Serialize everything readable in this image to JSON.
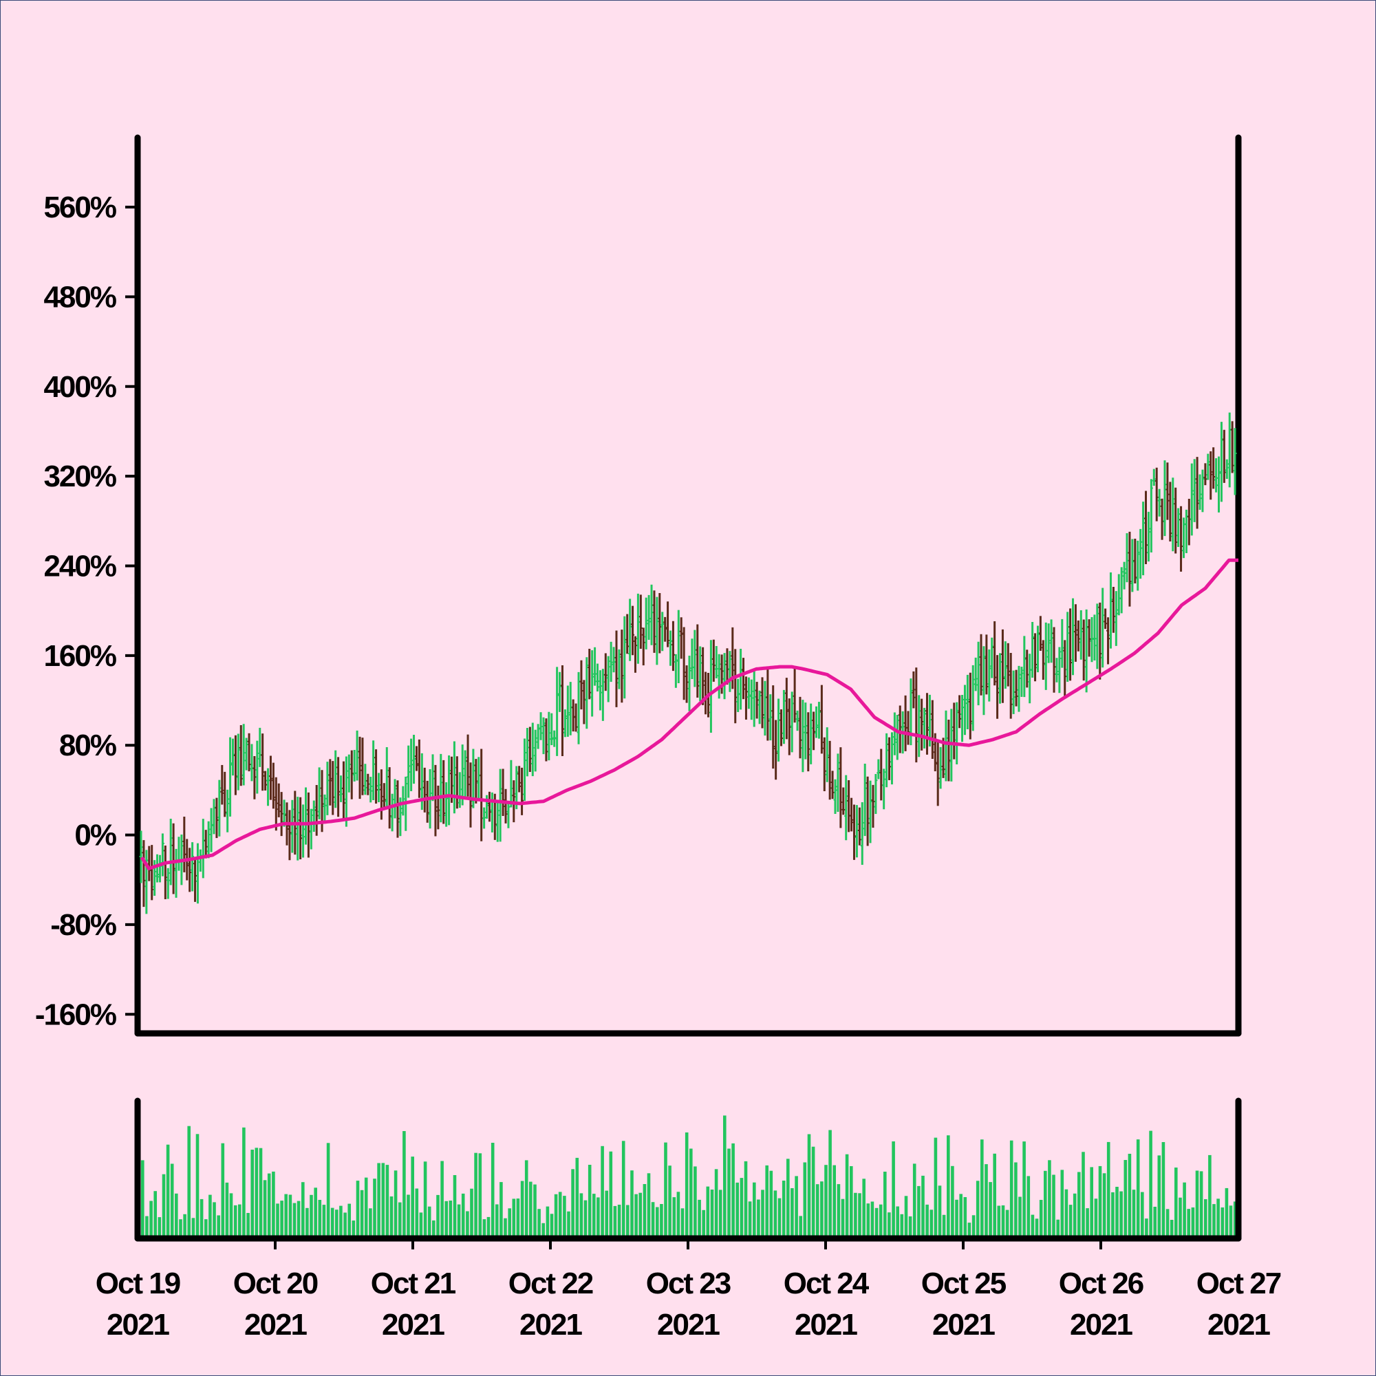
{
  "chart_data": {
    "type": "ohlc",
    "price_panel": {
      "y_ticks": [
        560,
        480,
        400,
        320,
        240,
        160,
        80,
        0,
        -80,
        -160
      ],
      "y_tick_labels": [
        "560%",
        "480%",
        "400%",
        "320%",
        "240%",
        "160%",
        "80%",
        "0%",
        "-80%",
        "-160%"
      ],
      "ylim": [
        -177,
        622
      ],
      "up_color": "#22c55e",
      "down_color": "#5a2a1a",
      "ma_color": "#e8189a",
      "anchors_close": [
        [
          0,
          -20
        ],
        [
          5,
          -32
        ],
        [
          10,
          -20
        ],
        [
          15,
          -28
        ],
        [
          20,
          -18
        ],
        [
          25,
          -5
        ],
        [
          30,
          30
        ],
        [
          35,
          60
        ],
        [
          40,
          68
        ],
        [
          45,
          60
        ],
        [
          50,
          40
        ],
        [
          55,
          10
        ],
        [
          60,
          -5
        ],
        [
          65,
          30
        ],
        [
          70,
          50
        ],
        [
          75,
          45
        ],
        [
          80,
          60
        ],
        [
          85,
          50
        ],
        [
          90,
          40
        ],
        [
          95,
          30
        ],
        [
          100,
          50
        ],
        [
          105,
          40
        ],
        [
          110,
          30
        ],
        [
          115,
          40
        ],
        [
          120,
          50
        ],
        [
          125,
          35
        ],
        [
          130,
          30
        ],
        [
          135,
          20
        ],
        [
          140,
          40
        ],
        [
          145,
          75
        ],
        [
          150,
          90
        ],
        [
          155,
          115
        ],
        [
          160,
          110
        ],
        [
          165,
          135
        ],
        [
          170,
          140
        ],
        [
          175,
          135
        ],
        [
          180,
          165
        ],
        [
          185,
          180
        ],
        [
          190,
          190
        ],
        [
          195,
          175
        ],
        [
          200,
          160
        ],
        [
          205,
          145
        ],
        [
          210,
          135
        ],
        [
          215,
          150
        ],
        [
          220,
          140
        ],
        [
          225,
          130
        ],
        [
          230,
          115
        ],
        [
          235,
          90
        ],
        [
          240,
          110
        ],
        [
          245,
          80
        ],
        [
          250,
          100
        ],
        [
          255,
          55
        ],
        [
          260,
          40
        ],
        [
          265,
          10
        ],
        [
          270,
          30
        ],
        [
          275,
          65
        ],
        [
          280,
          100
        ],
        [
          285,
          110
        ],
        [
          290,
          100
        ],
        [
          295,
          70
        ],
        [
          300,
          85
        ],
        [
          305,
          110
        ],
        [
          310,
          135
        ],
        [
          315,
          150
        ],
        [
          320,
          130
        ],
        [
          325,
          145
        ],
        [
          330,
          160
        ],
        [
          335,
          175
        ],
        [
          340,
          150
        ],
        [
          345,
          175
        ],
        [
          350,
          170
        ],
        [
          355,
          180
        ],
        [
          360,
          200
        ],
        [
          365,
          225
        ],
        [
          370,
          255
        ],
        [
          375,
          310
        ],
        [
          380,
          290
        ],
        [
          385,
          275
        ],
        [
          390,
          300
        ],
        [
          395,
          320
        ],
        [
          400,
          340
        ],
        [
          405,
          350
        ]
      ],
      "ma_anchors": [
        [
          0,
          -20
        ],
        [
          3,
          -30
        ],
        [
          10,
          -25
        ],
        [
          20,
          -22
        ],
        [
          30,
          -18
        ],
        [
          40,
          -5
        ],
        [
          50,
          5
        ],
        [
          60,
          10
        ],
        [
          70,
          10
        ],
        [
          80,
          12
        ],
        [
          90,
          15
        ],
        [
          100,
          22
        ],
        [
          110,
          28
        ],
        [
          120,
          32
        ],
        [
          130,
          35
        ],
        [
          140,
          32
        ],
        [
          150,
          30
        ],
        [
          160,
          28
        ],
        [
          170,
          30
        ],
        [
          180,
          40
        ],
        [
          190,
          48
        ],
        [
          200,
          58
        ],
        [
          210,
          70
        ],
        [
          220,
          85
        ],
        [
          230,
          105
        ],
        [
          240,
          125
        ],
        [
          250,
          140
        ],
        [
          260,
          148
        ],
        [
          270,
          150
        ],
        [
          275,
          150
        ],
        [
          280,
          148
        ],
        [
          290,
          143
        ],
        [
          300,
          130
        ],
        [
          310,
          105
        ],
        [
          320,
          92
        ],
        [
          330,
          88
        ],
        [
          340,
          82
        ],
        [
          350,
          80
        ],
        [
          360,
          85
        ],
        [
          370,
          92
        ],
        [
          380,
          108
        ],
        [
          390,
          122
        ],
        [
          400,
          135
        ],
        [
          410,
          148
        ],
        [
          420,
          162
        ],
        [
          430,
          180
        ],
        [
          440,
          205
        ],
        [
          450,
          220
        ],
        [
          460,
          245
        ]
      ]
    },
    "volume_panel": {
      "color": "#22c55e"
    },
    "x_ticks": [
      {
        "line1": "Oct 19",
        "line2": "2021"
      },
      {
        "line1": "Oct 20",
        "line2": "2021"
      },
      {
        "line1": "Oct 21",
        "line2": "2021"
      },
      {
        "line1": "Oct 22",
        "line2": "2021"
      },
      {
        "line1": "Oct 23",
        "line2": "2021"
      },
      {
        "line1": "Oct 24",
        "line2": "2021"
      },
      {
        "line1": "Oct 25",
        "line2": "2021"
      },
      {
        "line1": "Oct 26",
        "line2": "2021"
      },
      {
        "line1": "Oct 27",
        "line2": "2021"
      }
    ],
    "grid": false,
    "legend": "none"
  }
}
